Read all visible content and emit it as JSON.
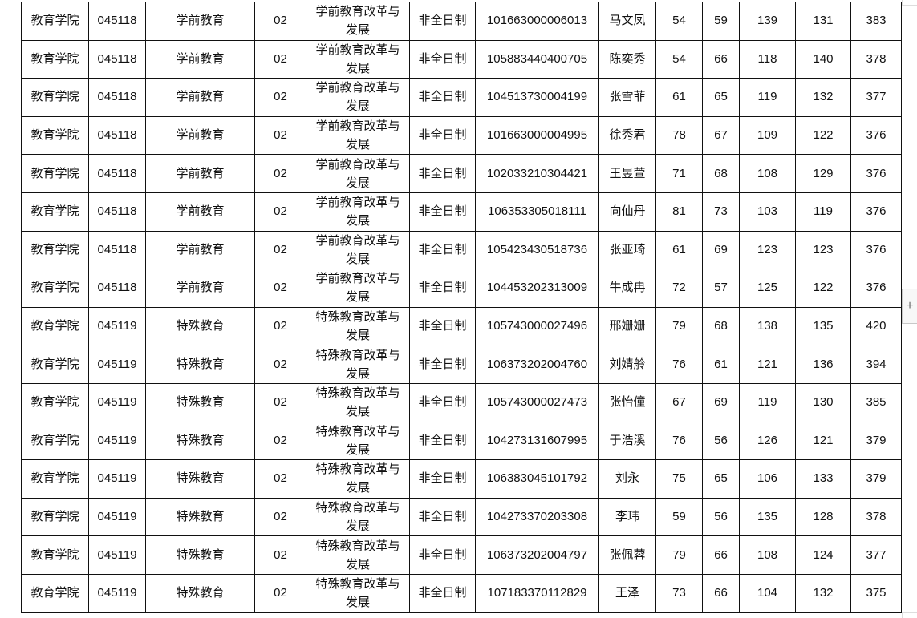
{
  "add_button_label": "+",
  "rows": [
    [
      "教育学院",
      "045118",
      "学前教育",
      "02",
      "学前教育改革与发展",
      "非全日制",
      "101663000006013",
      "马文凤",
      "54",
      "59",
      "139",
      "131",
      "383"
    ],
    [
      "教育学院",
      "045118",
      "学前教育",
      "02",
      "学前教育改革与发展",
      "非全日制",
      "105883440400705",
      "陈奕秀",
      "54",
      "66",
      "118",
      "140",
      "378"
    ],
    [
      "教育学院",
      "045118",
      "学前教育",
      "02",
      "学前教育改革与发展",
      "非全日制",
      "104513730004199",
      "张雪菲",
      "61",
      "65",
      "119",
      "132",
      "377"
    ],
    [
      "教育学院",
      "045118",
      "学前教育",
      "02",
      "学前教育改革与发展",
      "非全日制",
      "101663000004995",
      "徐秀君",
      "78",
      "67",
      "109",
      "122",
      "376"
    ],
    [
      "教育学院",
      "045118",
      "学前教育",
      "02",
      "学前教育改革与发展",
      "非全日制",
      "102033210304421",
      "王昱萱",
      "71",
      "68",
      "108",
      "129",
      "376"
    ],
    [
      "教育学院",
      "045118",
      "学前教育",
      "02",
      "学前教育改革与发展",
      "非全日制",
      "106353305018111",
      "向仙丹",
      "81",
      "73",
      "103",
      "119",
      "376"
    ],
    [
      "教育学院",
      "045118",
      "学前教育",
      "02",
      "学前教育改革与发展",
      "非全日制",
      "105423430518736",
      "张亚琦",
      "61",
      "69",
      "123",
      "123",
      "376"
    ],
    [
      "教育学院",
      "045118",
      "学前教育",
      "02",
      "学前教育改革与发展",
      "非全日制",
      "104453202313009",
      "牛成冉",
      "72",
      "57",
      "125",
      "122",
      "376"
    ],
    [
      "教育学院",
      "045119",
      "特殊教育",
      "02",
      "特殊教育改革与发展",
      "非全日制",
      "105743000027496",
      "邢姗姗",
      "79",
      "68",
      "138",
      "135",
      "420"
    ],
    [
      "教育学院",
      "045119",
      "特殊教育",
      "02",
      "特殊教育改革与发展",
      "非全日制",
      "106373202004760",
      "刘婧舲",
      "76",
      "61",
      "121",
      "136",
      "394"
    ],
    [
      "教育学院",
      "045119",
      "特殊教育",
      "02",
      "特殊教育改革与发展",
      "非全日制",
      "105743000027473",
      "张怡僮",
      "67",
      "69",
      "119",
      "130",
      "385"
    ],
    [
      "教育学院",
      "045119",
      "特殊教育",
      "02",
      "特殊教育改革与发展",
      "非全日制",
      "104273131607995",
      "于浩溪",
      "76",
      "56",
      "126",
      "121",
      "379"
    ],
    [
      "教育学院",
      "045119",
      "特殊教育",
      "02",
      "特殊教育改革与发展",
      "非全日制",
      "106383045101792",
      "刘永",
      "75",
      "65",
      "106",
      "133",
      "379"
    ],
    [
      "教育学院",
      "045119",
      "特殊教育",
      "02",
      "特殊教育改革与发展",
      "非全日制",
      "104273370203308",
      "李玮",
      "59",
      "56",
      "135",
      "128",
      "378"
    ],
    [
      "教育学院",
      "045119",
      "特殊教育",
      "02",
      "特殊教育改革与发展",
      "非全日制",
      "106373202004797",
      "张佩蓉",
      "79",
      "66",
      "108",
      "124",
      "377"
    ],
    [
      "教育学院",
      "045119",
      "特殊教育",
      "02",
      "特殊教育改革与发展",
      "非全日制",
      "107183370112829",
      "王泽",
      "73",
      "66",
      "104",
      "132",
      "375"
    ]
  ]
}
